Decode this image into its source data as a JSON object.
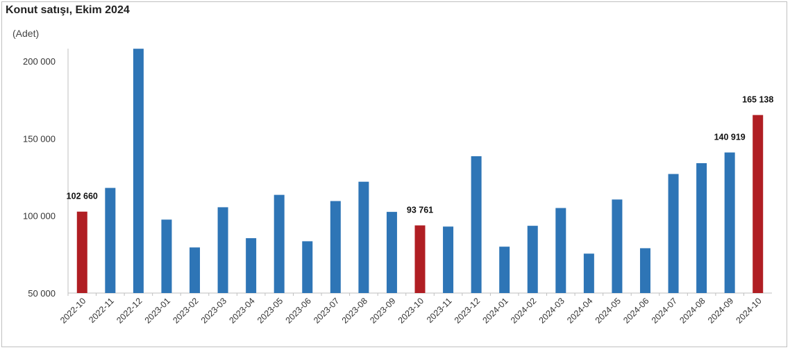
{
  "title": "Konut satışı, Ekim 2024",
  "unit": "(Adet)",
  "colors": {
    "normal": "#2e75b6",
    "highlight": "#b01e23",
    "axis": "#bfbfbf"
  },
  "chart_data": {
    "type": "bar",
    "title": "Konut satışı, Ekim 2024",
    "ylabel": "(Adet)",
    "xlabel": "",
    "ylim": [
      50000,
      210000
    ],
    "yticks": [
      50000,
      100000,
      150000,
      200000
    ],
    "ytick_labels": [
      "50 000",
      "100 000",
      "150 000",
      "200 000"
    ],
    "grid": false,
    "categories": [
      "2022-10",
      "2022-11",
      "2022-12",
      "2023-01",
      "2023-02",
      "2023-03",
      "2023-04",
      "2023-05",
      "2023-06",
      "2023-07",
      "2023-08",
      "2023-09",
      "2023-10",
      "2023-11",
      "2023-12",
      "2024-01",
      "2024-02",
      "2024-03",
      "2024-04",
      "2024-05",
      "2024-06",
      "2024-07",
      "2024-08",
      "2024-09",
      "2024-10"
    ],
    "values": [
      102660,
      118000,
      208000,
      97500,
      79500,
      105500,
      85500,
      113500,
      83500,
      109500,
      122000,
      102500,
      93761,
      93000,
      138500,
      80000,
      93500,
      105000,
      75500,
      110500,
      79000,
      127000,
      134000,
      140919,
      165138
    ],
    "highlighted": [
      "2022-10",
      "2023-10",
      "2024-10"
    ],
    "data_labels": [
      {
        "category": "2022-10",
        "text": "102 660"
      },
      {
        "category": "2023-10",
        "text": "93 761"
      },
      {
        "category": "2024-09",
        "text": "140 919"
      },
      {
        "category": "2024-10",
        "text": "165 138"
      }
    ]
  }
}
